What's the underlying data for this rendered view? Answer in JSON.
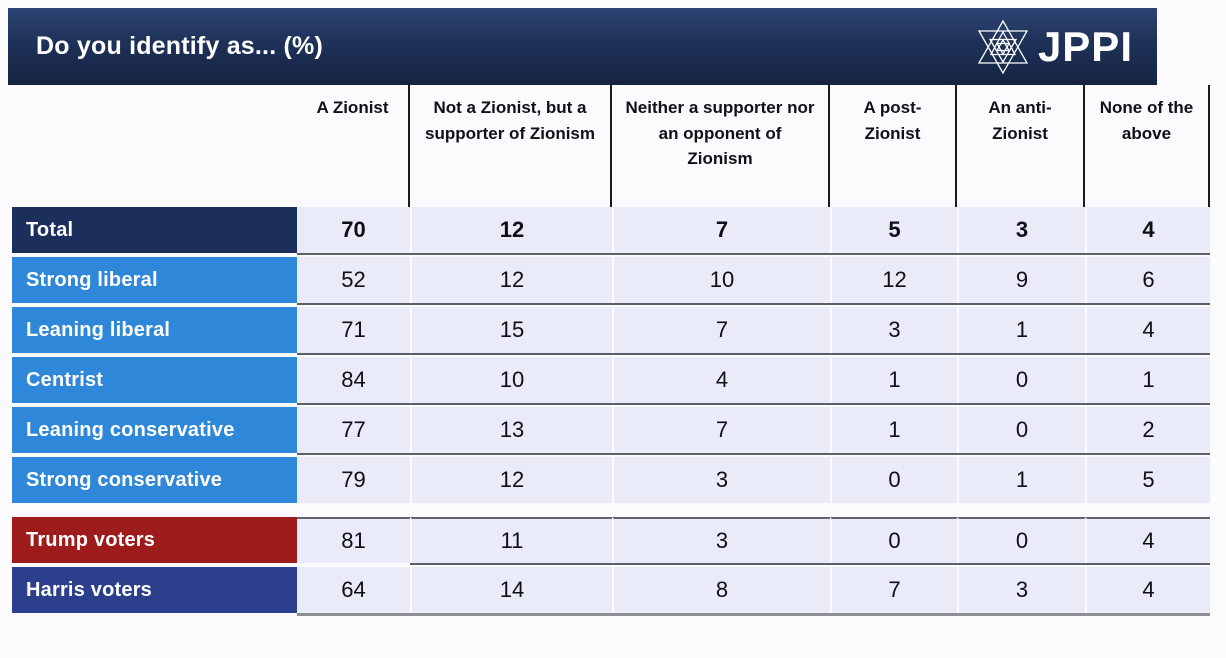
{
  "header": {
    "title": "Do you identify as... (%)",
    "logo_text": "JPPI"
  },
  "table": {
    "column_headers": [
      "A Zionist",
      "Not a Zionist, but a supporter of Zionism",
      "Neither a supporter nor an opponent of Zionism",
      "A post-Zionist",
      "An anti-Zionist",
      "None of the above"
    ],
    "groups": [
      {
        "name": "political-ideology",
        "rows": [
          {
            "label": "Total",
            "style": "total",
            "emphasis": true,
            "values": [
              70,
              12,
              7,
              5,
              3,
              4
            ]
          },
          {
            "label": "Strong liberal",
            "style": "blue",
            "emphasis": false,
            "values": [
              52,
              12,
              10,
              12,
              9,
              6
            ]
          },
          {
            "label": "Leaning liberal",
            "style": "blue",
            "emphasis": false,
            "values": [
              71,
              15,
              7,
              3,
              1,
              4
            ]
          },
          {
            "label": "Centrist",
            "style": "blue",
            "emphasis": false,
            "values": [
              84,
              10,
              4,
              1,
              0,
              1
            ]
          },
          {
            "label": "Leaning conservative",
            "style": "blue",
            "emphasis": false,
            "values": [
              77,
              13,
              7,
              1,
              0,
              2
            ]
          },
          {
            "label": "Strong conservative",
            "style": "blue",
            "emphasis": false,
            "values": [
              79,
              12,
              3,
              0,
              1,
              5
            ]
          }
        ]
      },
      {
        "name": "2024-vote",
        "rows": [
          {
            "label": "Trump voters",
            "style": "red",
            "emphasis": false,
            "values": [
              81,
              11,
              3,
              0,
              0,
              4
            ]
          },
          {
            "label": "Harris voters",
            "style": "navy",
            "emphasis": false,
            "values": [
              64,
              14,
              8,
              7,
              3,
              4
            ]
          }
        ]
      }
    ]
  },
  "colors": {
    "banner_top": "#2d4473",
    "banner_mid": "#1e3158",
    "banner_bottom": "#152441",
    "total_row": "#1c2e5c",
    "ideology_row": "#2e87d8",
    "trump_row": "#9e1b1b",
    "harris_row": "#2b3f8c",
    "cell_bg": "#e9ebf8",
    "page_bg": "#fbfbfd"
  },
  "chart_data": {
    "type": "table",
    "title": "Do you identify as... (%)",
    "columns": [
      "A Zionist",
      "Not a Zionist, but a supporter of Zionism",
      "Neither a supporter nor an opponent of Zionism",
      "A post-Zionist",
      "An anti-Zionist",
      "None of the above"
    ],
    "rows": [
      {
        "label": "Total",
        "values": [
          70,
          12,
          7,
          5,
          3,
          4
        ]
      },
      {
        "label": "Strong liberal",
        "values": [
          52,
          12,
          10,
          12,
          9,
          6
        ]
      },
      {
        "label": "Leaning liberal",
        "values": [
          71,
          15,
          7,
          3,
          1,
          4
        ]
      },
      {
        "label": "Centrist",
        "values": [
          84,
          10,
          4,
          1,
          0,
          1
        ]
      },
      {
        "label": "Leaning conservative",
        "values": [
          77,
          13,
          7,
          1,
          0,
          2
        ]
      },
      {
        "label": "Strong conservative",
        "values": [
          79,
          12,
          3,
          0,
          1,
          5
        ]
      },
      {
        "label": "Trump voters",
        "values": [
          81,
          11,
          3,
          0,
          0,
          4
        ]
      },
      {
        "label": "Harris voters",
        "values": [
          64,
          14,
          8,
          7,
          3,
          4
        ]
      }
    ],
    "legend_position": "none",
    "grid": false,
    "notes": "Values are row percentages; Total row emphasized in bold"
  }
}
